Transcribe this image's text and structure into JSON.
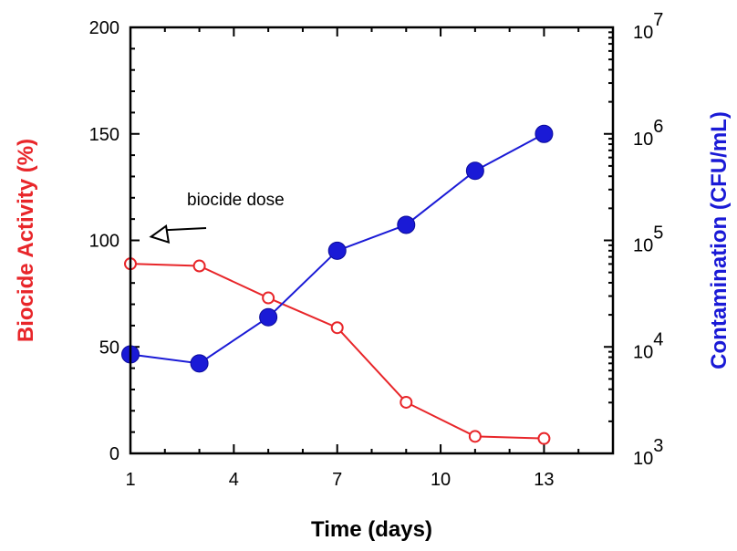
{
  "chart_data": {
    "type": "line",
    "xlabel": "Time (days)",
    "ylabel_left": "Biocide Activity (%)",
    "ylabel_right": "Contamination (CFU/mL)",
    "xlim": [
      1,
      15
    ],
    "ylim_left": [
      0,
      200
    ],
    "ylim_right": [
      1000,
      10000000
    ],
    "right_axis_scale": "log",
    "x_ticks": [
      1,
      4,
      7,
      10,
      13
    ],
    "y_ticks_left": [
      0,
      50,
      100,
      150,
      200
    ],
    "y_ticks_right": [
      {
        "value": 1000,
        "base": "10",
        "exp": "3"
      },
      {
        "value": 10000,
        "base": "10",
        "exp": "4"
      },
      {
        "value": 100000,
        "base": "10",
        "exp": "5"
      },
      {
        "value": 1000000,
        "base": "10",
        "exp": "6"
      },
      {
        "value": 10000000,
        "base": "10",
        "exp": "7"
      }
    ],
    "series": [
      {
        "axis": "left",
        "color": "#e8262a",
        "marker": "open-circle",
        "x": [
          1,
          3,
          5,
          7,
          9,
          11,
          13
        ],
        "values": [
          89,
          88,
          73,
          59,
          24,
          8,
          7
        ]
      },
      {
        "axis": "right",
        "color": "#1a1ad6",
        "marker": "filled-circle",
        "x": [
          1,
          3,
          5,
          7,
          9,
          11,
          13
        ],
        "values": [
          8500,
          7000,
          19000,
          80000,
          140000,
          450000,
          1000000
        ]
      }
    ],
    "annotations": [
      {
        "text": "biocide dose",
        "x": 1.6,
        "y": 100,
        "axis": "left"
      }
    ],
    "grid": false,
    "legend": "none",
    "colors": {
      "left_axis_title": "#e8262a",
      "right_axis_title": "#1a1ad6",
      "axes": "#000000"
    }
  }
}
